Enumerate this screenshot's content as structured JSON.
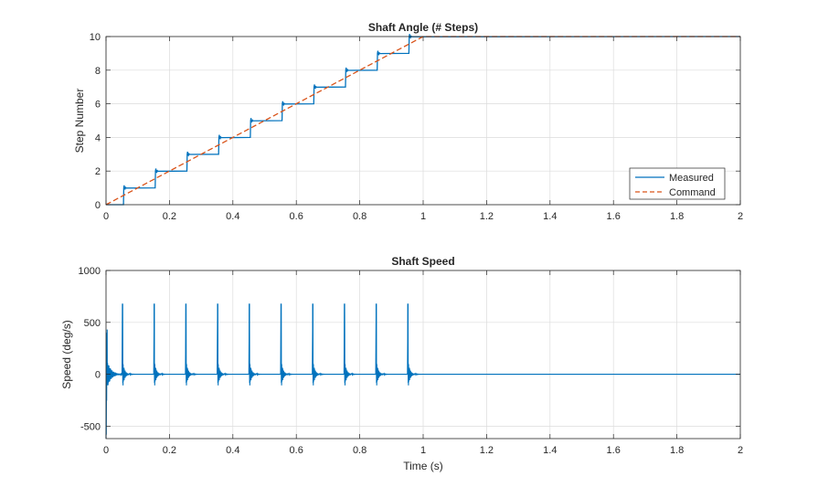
{
  "chart_data": [
    {
      "type": "line",
      "title": "Shaft Angle (# Steps)",
      "xlabel": "",
      "ylabel": "Step Number",
      "xlim": [
        0,
        2
      ],
      "ylim": [
        0,
        10
      ],
      "xticks": [
        "0",
        "0.2",
        "0.4",
        "0.6",
        "0.8",
        "1",
        "1.2",
        "1.4",
        "1.6",
        "1.8",
        "2"
      ],
      "yticks": [
        "0",
        "2",
        "4",
        "6",
        "8",
        "10"
      ],
      "grid": true,
      "legend_placement": "bottom-right",
      "series": [
        {
          "name": "Measured",
          "color": "#0072BD",
          "style": "solid",
          "x": [
            0,
            0.055,
            0.056,
            0.155,
            0.156,
            0.255,
            0.256,
            0.355,
            0.356,
            0.455,
            0.456,
            0.555,
            0.556,
            0.655,
            0.656,
            0.755,
            0.756,
            0.855,
            0.856,
            0.955,
            0.956,
            2.0
          ],
          "y": [
            0,
            0,
            1,
            1,
            2,
            2,
            3,
            3,
            4,
            4,
            5,
            5,
            6,
            6,
            7,
            7,
            8,
            8,
            9,
            9,
            10,
            10
          ]
        },
        {
          "name": "Command",
          "color": "#D95319",
          "style": "dashed",
          "x": [
            0,
            1.0,
            2.0
          ],
          "y": [
            0,
            10,
            10
          ]
        }
      ]
    },
    {
      "type": "line",
      "title": "Shaft Speed",
      "xlabel": "Time (s)",
      "ylabel": "Speed (deg/s)",
      "xlim": [
        0,
        2
      ],
      "ylim": [
        -620,
        1000
      ],
      "xticks": [
        "0",
        "0.2",
        "0.4",
        "0.6",
        "0.8",
        "1",
        "1.2",
        "1.4",
        "1.6",
        "1.8",
        "2"
      ],
      "yticks": [
        "-500",
        "0",
        "500",
        "1000"
      ],
      "grid": true,
      "series": [
        {
          "name": "",
          "color": "#0072BD",
          "style": "solid",
          "spike_times": [
            0.052,
            0.152,
            0.252,
            0.352,
            0.452,
            0.552,
            0.652,
            0.752,
            0.852,
            0.952
          ],
          "spike_peak": 680,
          "initial_peak": 400,
          "initial_trough": -620
        }
      ]
    }
  ]
}
